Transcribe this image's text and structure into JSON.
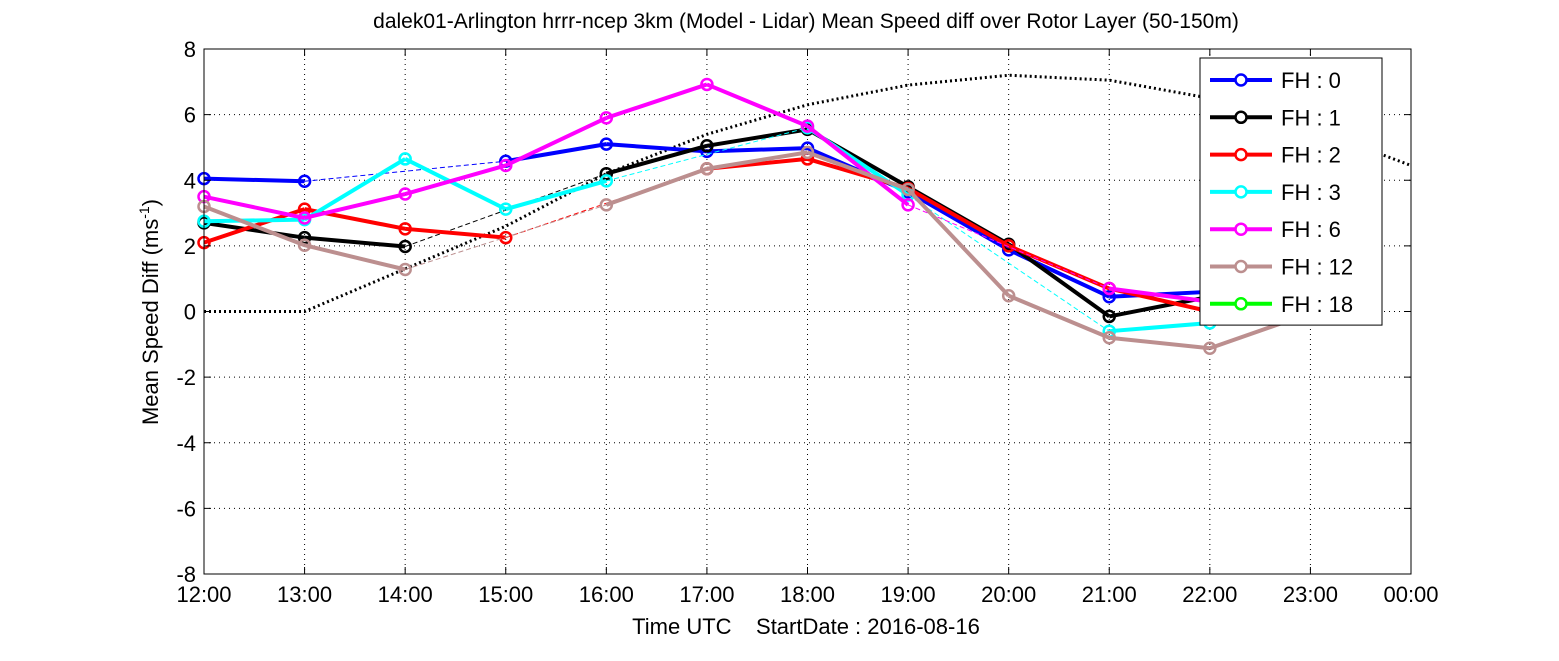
{
  "chart_data": {
    "type": "line",
    "title": "dalek01-Arlington hrrr-ncep 3km (Model - Lidar) Mean Speed diff over Rotor Layer (50-150m)",
    "xlabel": "Time UTC    StartDate : 2016-08-16",
    "ylabel_main": "Mean Speed Diff (ms",
    "ylabel_sup": "-1",
    "ylabel_close": ")",
    "x_ticks": [
      "12:00",
      "13:00",
      "14:00",
      "15:00",
      "16:00",
      "17:00",
      "18:00",
      "19:00",
      "20:00",
      "21:00",
      "22:00",
      "23:00",
      "00:00"
    ],
    "y_ticks": [
      "8",
      "6",
      "4",
      "2",
      "0",
      "-2",
      "-4",
      "-6",
      "-8"
    ],
    "ylim": [
      -8,
      8
    ],
    "xlim_hours": [
      12,
      24
    ],
    "grid": true,
    "legend_position": "top-right",
    "series": [
      {
        "name": "FH : 0",
        "color": "#0000ff",
        "points": [
          [
            12,
            4.05
          ],
          [
            13,
            3.97
          ],
          [
            15,
            4.58
          ],
          [
            16,
            5.1
          ],
          [
            17,
            4.88
          ],
          [
            18,
            4.98
          ],
          [
            19,
            3.65
          ],
          [
            20,
            1.88
          ],
          [
            21,
            0.45
          ],
          [
            22,
            0.6
          ]
        ]
      },
      {
        "name": "FH : 1",
        "color": "#000000",
        "points": [
          [
            12,
            2.7
          ],
          [
            13,
            2.25
          ],
          [
            14,
            1.98
          ],
          [
            16,
            4.2
          ],
          [
            17,
            5.05
          ],
          [
            18,
            5.55
          ],
          [
            19,
            3.8
          ],
          [
            20,
            2.05
          ],
          [
            21,
            -0.15
          ],
          [
            22,
            0.45
          ]
        ]
      },
      {
        "name": "FH : 2",
        "color": "#ff0000",
        "points": [
          [
            12,
            2.1
          ],
          [
            13,
            3.12
          ],
          [
            14,
            2.52
          ],
          [
            15,
            2.25
          ],
          [
            17,
            4.35
          ],
          [
            18,
            4.65
          ],
          [
            19,
            3.75
          ],
          [
            20,
            2.0
          ],
          [
            21,
            0.7
          ],
          [
            22,
            0.0
          ]
        ]
      },
      {
        "name": "FH : 3",
        "color": "#00ffff",
        "points": [
          [
            12,
            2.75
          ],
          [
            13,
            2.8
          ],
          [
            14,
            4.65
          ],
          [
            15,
            3.12
          ],
          [
            16,
            3.98
          ],
          [
            18,
            5.6
          ],
          [
            19,
            3.55
          ],
          [
            21,
            -0.6
          ],
          [
            22,
            -0.35
          ]
        ]
      },
      {
        "name": "FH : 6",
        "color": "#ff00ff",
        "points": [
          [
            12,
            3.5
          ],
          [
            13,
            2.85
          ],
          [
            14,
            3.58
          ],
          [
            15,
            4.45
          ],
          [
            16,
            5.9
          ],
          [
            17,
            6.92
          ],
          [
            18,
            5.65
          ],
          [
            19,
            3.25
          ],
          [
            21,
            0.7
          ],
          [
            22,
            0.3
          ]
        ]
      },
      {
        "name": "FH : 12",
        "color": "#bc8f8f",
        "points": [
          [
            12,
            3.2
          ],
          [
            13,
            2.02
          ],
          [
            14,
            1.28
          ],
          [
            16,
            3.25
          ],
          [
            17,
            4.35
          ],
          [
            18,
            4.85
          ],
          [
            19,
            3.72
          ],
          [
            20,
            0.48
          ],
          [
            21,
            -0.8
          ],
          [
            22,
            -1.12
          ],
          [
            23,
            -0.05
          ]
        ]
      },
      {
        "name": "FH : 18",
        "color": "#00ff00",
        "points": []
      }
    ],
    "dotted_curve": {
      "color": "#000000",
      "points": [
        [
          12,
          0
        ],
        [
          13,
          0
        ],
        [
          14,
          1.3
        ],
        [
          15,
          2.6
        ],
        [
          16,
          4.2
        ],
        [
          17,
          5.4
        ],
        [
          18,
          6.3
        ],
        [
          19,
          6.9
        ],
        [
          20,
          7.2
        ],
        [
          21,
          7.05
        ],
        [
          22,
          6.5
        ],
        [
          23,
          5.6
        ],
        [
          24,
          4.45
        ]
      ]
    }
  }
}
